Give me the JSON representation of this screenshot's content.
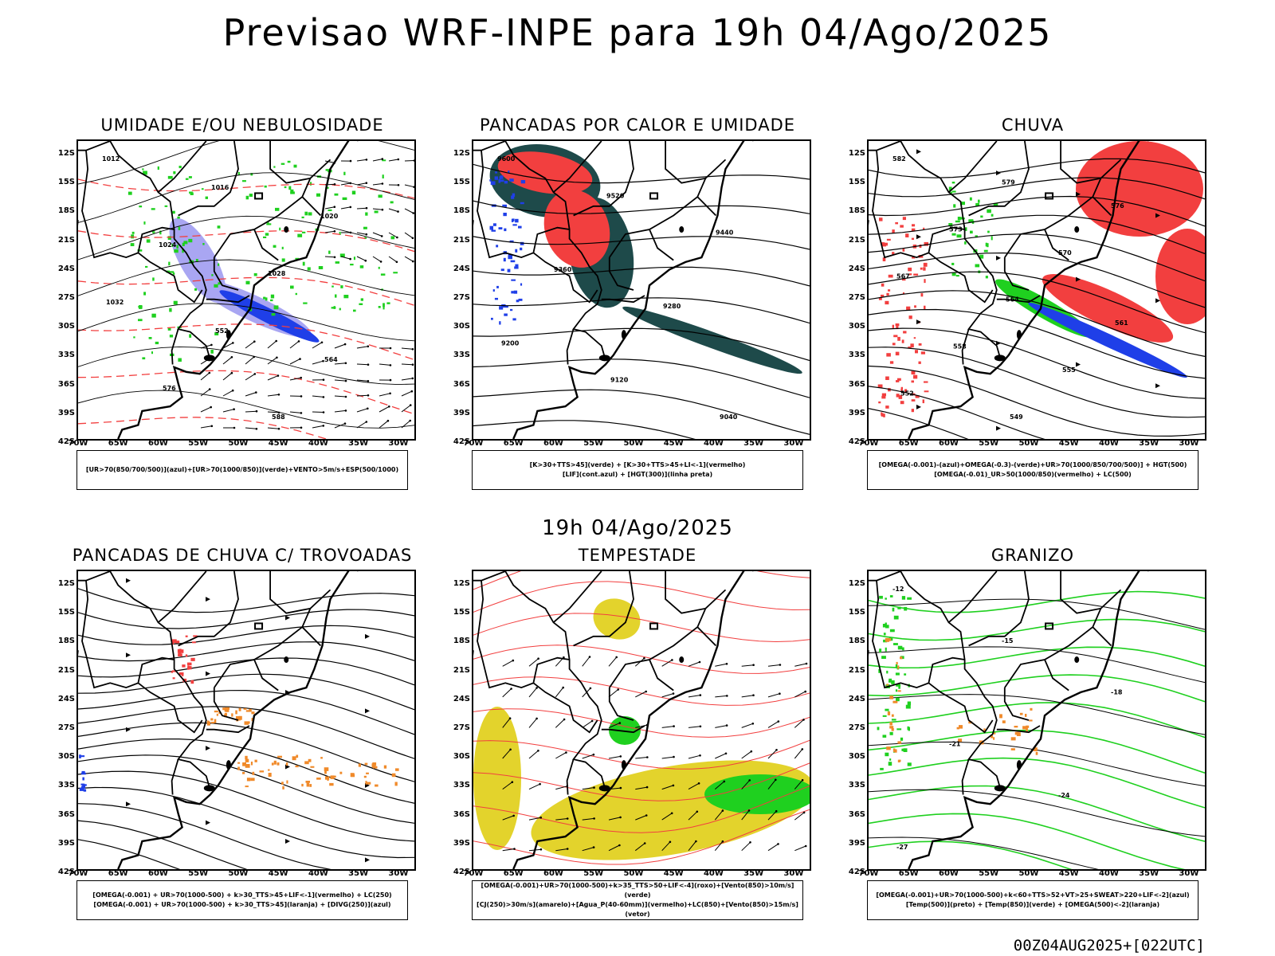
{
  "title": "Previsao WRF-INPE  para 19h 04/Ago/2025",
  "mid_label": "19h 04/Ago/2025",
  "footer": "00Z04AUG2025+[022UTC]",
  "axes": {
    "lat_ticks": [
      "12S",
      "15S",
      "18S",
      "21S",
      "24S",
      "27S",
      "30S",
      "33S",
      "36S",
      "39S",
      "42S"
    ],
    "lon_ticks": [
      "70W",
      "65W",
      "60W",
      "55W",
      "50W",
      "45W",
      "40W",
      "35W",
      "30W"
    ]
  },
  "colors": {
    "red": "#f23f3f",
    "green": "#1fd01f",
    "blue": "#1f3fe8",
    "lightblue": "#a9a6f2",
    "darkteal": "#1e4a4a",
    "yellow": "#e3d32c",
    "orange": "#f08a2a",
    "purple": "#8a1fb0"
  },
  "panels": [
    {
      "title": "UMIDADE E/OU NEBULOSIDADE",
      "legend": [
        "[UR>70(850/700/500)](azul)+[UR>70(1000/850)](verde)+VENTO>5m/s+ESP(500/1000)"
      ],
      "contour_labels": [
        "1012",
        "1016",
        "1020",
        "1024",
        "1028",
        "1032",
        "552",
        "564",
        "576",
        "588"
      ]
    },
    {
      "title": "PANCADAS POR CALOR E UMIDADE",
      "legend": [
        "[K>30+TTS>45](verde) + [K>30+TTS>45+LI<-1](vermelho)",
        "[LIF](cont.azul) + [HGT(300)](linha preta)"
      ],
      "contour_labels": [
        "9600",
        "9520",
        "9440",
        "9360",
        "9280",
        "9200",
        "9120",
        "9040"
      ]
    },
    {
      "title": "CHUVA",
      "legend": [
        "[OMEGA(-0.001)-(azul)+OMEGA(-0.3)-(verde)+UR>70(1000/850/700/500)] + HGT(500)",
        "[OMEGA(-0.01)_UR>50(1000/850)(vermelho) + LC(500)"
      ],
      "contour_labels": [
        "582",
        "579",
        "576",
        "573",
        "570",
        "567",
        "564",
        "561",
        "558",
        "555",
        "552",
        "549"
      ]
    },
    {
      "title": "PANCADAS DE CHUVA C/ TROVOADAS",
      "legend": [
        "[OMEGA(-0.001) + UR>70(1000-500) + k>30_TTS>45+LIF<-1](vermelho) + LC(250)",
        "[OMEGA(-0.001) + UR>70(1000-500) + k>30_TTS>45](laranja) + [DIVG(250)](azul)"
      ],
      "contour_labels": []
    },
    {
      "title": "TEMPESTADE",
      "legend": [
        "[OMEGA(-0.001)+UR>70(1000-500)+k>35_TTS>50+LIF<-4](roxo)+[Vento(850)>10m/s](verde)",
        "[CJ(250)>30m/s](amarelo)+[Agua_P(40-60mm)](vermelho)+LC(850)+[Vento(850)>15m/s](vetor)"
      ],
      "contour_labels": []
    },
    {
      "title": "GRANIZO",
      "legend": [
        "[OMEGA(-0.001)+UR>70(1000-500)+k<60+TTS>52+VT>25+SWEAT>220+LIF<-2](azul)",
        "[Temp(500)](preto) + [Temp(850)](verde) + [OMEGA(500)<-2](laranja)"
      ],
      "contour_labels": [
        "-12",
        "-15",
        "-18",
        "-21",
        "-24",
        "-27"
      ]
    }
  ]
}
